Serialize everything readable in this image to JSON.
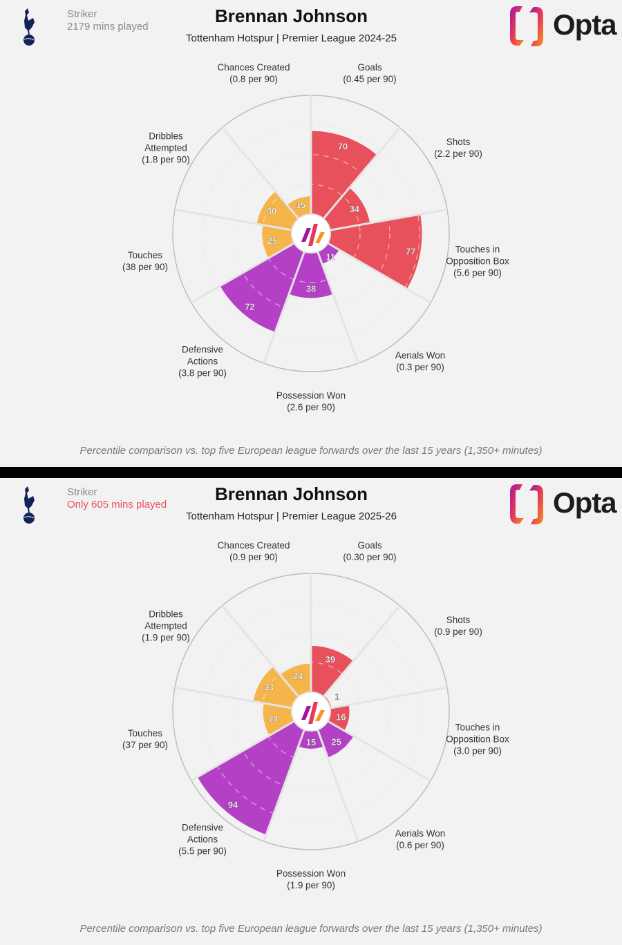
{
  "panels": [
    {
      "position": "Striker",
      "minutes": "2179 mins played",
      "minutes_highlight": false,
      "player": "Brennan Johnson",
      "subtitle": "Tottenham Hotspur | Premier League 2024-25",
      "footnote": "Percentile comparison vs. top five European league forwards over the last 15 years (1,350+ minutes)"
    },
    {
      "position": "Striker",
      "minutes": "Only 605 mins played",
      "minutes_highlight": true,
      "player": "Brennan Johnson",
      "subtitle": "Tottenham Hotspur | Premier League 2025-26",
      "footnote": "Percentile comparison vs. top five European league forwards over the last 15 years (1,350+ minutes)"
    }
  ],
  "logo": {
    "brand": "Opta"
  },
  "colors": {
    "attacking": "#e8505b",
    "possession": "#f5b54a",
    "defending": "#b440c6",
    "background": "#f2f2f2",
    "highlight": "#e8505b"
  },
  "chart_data": [
    {
      "type": "pie",
      "subtype": "polar-bar (pizza)",
      "scale": "percentile",
      "range": [
        0,
        100
      ],
      "categories": [
        "Goals",
        "Shots",
        "Touches in Opposition Box",
        "Aerials Won",
        "Possession Won",
        "Defensive Actions",
        "Touches",
        "Dribbles Attempted",
        "Chances Created"
      ],
      "labels": [
        "Goals",
        "Shots",
        "Touches in\nOpposition Box",
        "Aerials Won",
        "Possession Won",
        "Defensive\nActions",
        "Touches",
        "Dribbles\nAttempted",
        "Chances Created"
      ],
      "per90": [
        "(0.45 per 90)",
        "(2.2 per 90)",
        "(5.6 per 90)",
        "(0.3 per 90)",
        "(2.6 per 90)",
        "(3.8 per 90)",
        "(38 per 90)",
        "(1.8 per 90)",
        "(0.8 per 90)"
      ],
      "groups": [
        "attacking",
        "attacking",
        "attacking",
        "defending",
        "defending",
        "defending",
        "possession",
        "possession",
        "possession"
      ],
      "values": [
        70,
        34,
        77,
        11,
        38,
        72,
        25,
        30,
        15
      ]
    },
    {
      "type": "pie",
      "subtype": "polar-bar (pizza)",
      "scale": "percentile",
      "range": [
        0,
        100
      ],
      "categories": [
        "Goals",
        "Shots",
        "Touches in Opposition Box",
        "Aerials Won",
        "Possession Won",
        "Defensive Actions",
        "Touches",
        "Dribbles Attempted",
        "Chances Created"
      ],
      "labels": [
        "Goals",
        "Shots",
        "Touches in\nOpposition Box",
        "Aerials Won",
        "Possession Won",
        "Defensive\nActions",
        "Touches",
        "Dribbles\nAttempted",
        "Chances Created"
      ],
      "per90": [
        "(0.30 per 90)",
        "(0.9 per 90)",
        "(3.0 per 90)",
        "(0.6 per 90)",
        "(1.9 per 90)",
        "(5.5 per 90)",
        "(37 per 90)",
        "(1.9 per 90)",
        "(0.9 per 90)"
      ],
      "groups": [
        "attacking",
        "attacking",
        "attacking",
        "defending",
        "defending",
        "defending",
        "possession",
        "possession",
        "possession"
      ],
      "values": [
        39,
        1,
        16,
        25,
        15,
        94,
        24,
        33,
        24
      ]
    }
  ]
}
